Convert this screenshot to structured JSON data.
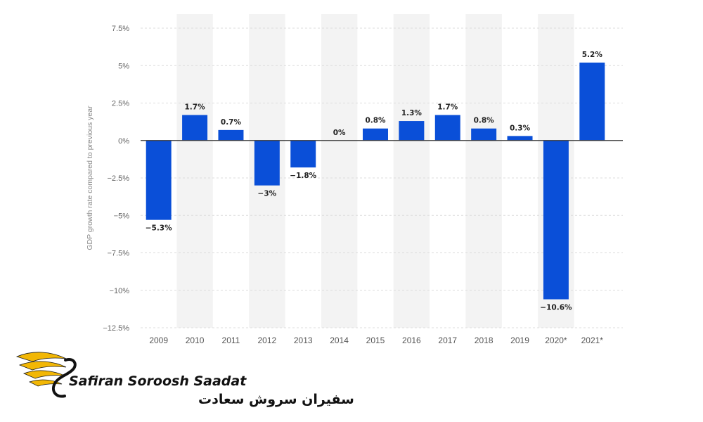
{
  "chart_data": {
    "type": "bar",
    "categories": [
      "2009",
      "2010",
      "2011",
      "2012",
      "2013",
      "2014",
      "2015",
      "2016",
      "2017",
      "2018",
      "2019",
      "2020*",
      "2021*"
    ],
    "series": [
      {
        "values": [
          -5.3,
          1.7,
          0.7,
          -3,
          -1.8,
          0,
          0.8,
          1.3,
          1.7,
          0.8,
          0.3,
          -10.6,
          5.2
        ]
      }
    ],
    "data_labels": [
      "-5.3%",
      "1.7%",
      "0.7%",
      "-3%",
      "-1.8%",
      "0%",
      "0.8%",
      "1.3%",
      "1.7%",
      "0.8%",
      "0.3%",
      "-10.6%",
      "5.2%"
    ],
    "ylabel": "GDP growth rate compared to previous year",
    "ylim": [
      -12.5,
      7.5
    ],
    "yticks": [
      7.5,
      5,
      2.5,
      0,
      -2.5,
      -5,
      -7.5,
      -10,
      -12.5
    ],
    "ytick_labels": [
      "7.5%",
      "5%",
      "2.5%",
      "0%",
      "-2.5%",
      "-5%",
      "-7.5%",
      "-10%",
      "-12.5%"
    ],
    "bar_color": "#0a4fd8",
    "band_color": "#f3f3f3",
    "grid": true
  },
  "watermark": {
    "brand_latin": "Safiran Soroosh Saadat",
    "brand_persian": "سفیران سروش سعادت",
    "accent_color": "#f2b705"
  }
}
